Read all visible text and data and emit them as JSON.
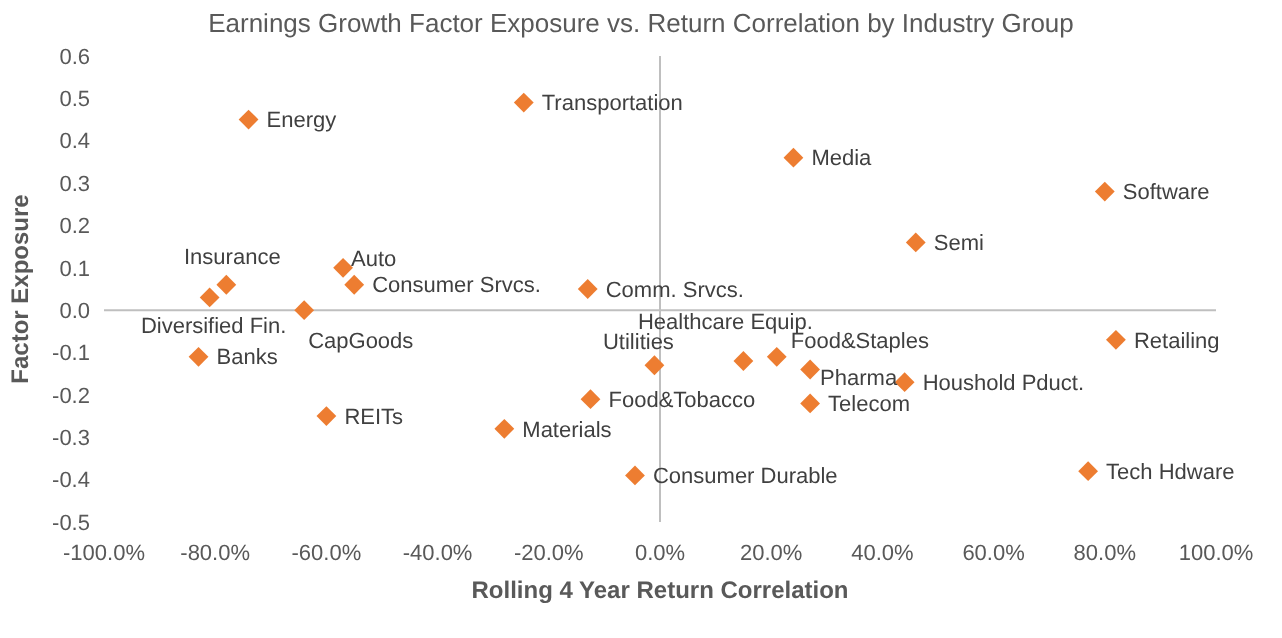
{
  "chart_data": {
    "type": "scatter",
    "title": "Earnings Growth Factor Exposure vs. Return Correlation by Industry Group",
    "xlabel": "Rolling 4 Year Return Correlation",
    "ylabel": "Factor Exposure",
    "marker": "diamond",
    "xlim": [
      -100,
      100
    ],
    "xticks": [
      {
        "value": -100,
        "label": "-100.0%"
      },
      {
        "value": -80,
        "label": "-80.0%"
      },
      {
        "value": -60,
        "label": "-60.0%"
      },
      {
        "value": -40,
        "label": "-40.0%"
      },
      {
        "value": -20,
        "label": "-20.0%"
      },
      {
        "value": 0,
        "label": "0.0%"
      },
      {
        "value": 20,
        "label": "20.0%"
      },
      {
        "value": 40,
        "label": "40.0%"
      },
      {
        "value": 60,
        "label": "60.0%"
      },
      {
        "value": 80,
        "label": "80.0%"
      },
      {
        "value": 100,
        "label": "100.0%"
      }
    ],
    "ylim": [
      -0.5,
      0.6
    ],
    "yticks": [
      {
        "value": -0.5,
        "label": "-0.5"
      },
      {
        "value": -0.4,
        "label": "-0.4"
      },
      {
        "value": -0.3,
        "label": "-0.3"
      },
      {
        "value": -0.2,
        "label": "-0.2"
      },
      {
        "value": -0.1,
        "label": "-0.1"
      },
      {
        "value": 0,
        "label": "0.0"
      },
      {
        "value": 0.1,
        "label": "0.1"
      },
      {
        "value": 0.2,
        "label": "0.2"
      },
      {
        "value": 0.3,
        "label": "0.3"
      },
      {
        "value": 0.4,
        "label": "0.4"
      },
      {
        "value": 0.5,
        "label": "0.5"
      },
      {
        "value": 0.6,
        "label": "0.6"
      }
    ],
    "series": [
      {
        "color": "#ed7d31",
        "x": [
          -74,
          -24.5,
          24,
          80,
          46,
          -78,
          -81,
          -57,
          -55,
          -64,
          -13,
          -83,
          -60,
          -28,
          -12.5,
          -4.5,
          -1,
          15,
          21,
          27,
          27,
          44,
          82,
          77
        ],
        "values": [
          0.45,
          0.49,
          0.36,
          0.28,
          0.16,
          0.06,
          0.03,
          0.1,
          0.06,
          0,
          0.05,
          -0.11,
          -0.25,
          -0.28,
          -0.21,
          -0.39,
          -0.13,
          -0.12,
          -0.11,
          -0.14,
          -0.22,
          -0.17,
          -0.07,
          -0.38
        ]
      }
    ],
    "annotations": [
      {
        "text": "Energy",
        "x": -74,
        "y": 0.45
      },
      {
        "text": "Transportation",
        "x": -24.5,
        "y": 0.49
      },
      {
        "text": "Media",
        "x": 24,
        "y": 0.36
      },
      {
        "text": "Software",
        "x": 80,
        "y": 0.28
      },
      {
        "text": "Semi",
        "x": 46,
        "y": 0.16
      },
      {
        "text": "Insurance",
        "x": -78,
        "y": 0.06
      },
      {
        "text": "Diversified Fin.",
        "x": -81,
        "y": 0.03
      },
      {
        "text": "Auto",
        "x": -57,
        "y": 0.1
      },
      {
        "text": "Consumer Srvcs.",
        "x": -55,
        "y": 0.06
      },
      {
        "text": "CapGoods",
        "x": -64,
        "y": 0
      },
      {
        "text": "Comm. Srvcs.",
        "x": -13,
        "y": 0.05
      },
      {
        "text": "Banks",
        "x": -83,
        "y": -0.11
      },
      {
        "text": "REITs",
        "x": -60,
        "y": -0.25
      },
      {
        "text": "Materials",
        "x": -28,
        "y": -0.28
      },
      {
        "text": "Food&Tobacco",
        "x": -12.5,
        "y": -0.21
      },
      {
        "text": "Consumer Durable",
        "x": -4.5,
        "y": -0.39
      },
      {
        "text": "Utilities",
        "x": -1,
        "y": -0.13
      },
      {
        "text": "Healthcare Equip.",
        "x": 15,
        "y": -0.12
      },
      {
        "text": "Food&Staples",
        "x": 21,
        "y": -0.11
      },
      {
        "text": "Pharma",
        "x": 27,
        "y": -0.14
      },
      {
        "text": "Telecom",
        "x": 27,
        "y": -0.22
      },
      {
        "text": "Houshold Pduct.",
        "x": 44,
        "y": -0.17
      },
      {
        "text": "Retailing",
        "x": 82,
        "y": -0.07
      },
      {
        "text": "Tech Hdware",
        "x": 77,
        "y": -0.38
      }
    ]
  }
}
